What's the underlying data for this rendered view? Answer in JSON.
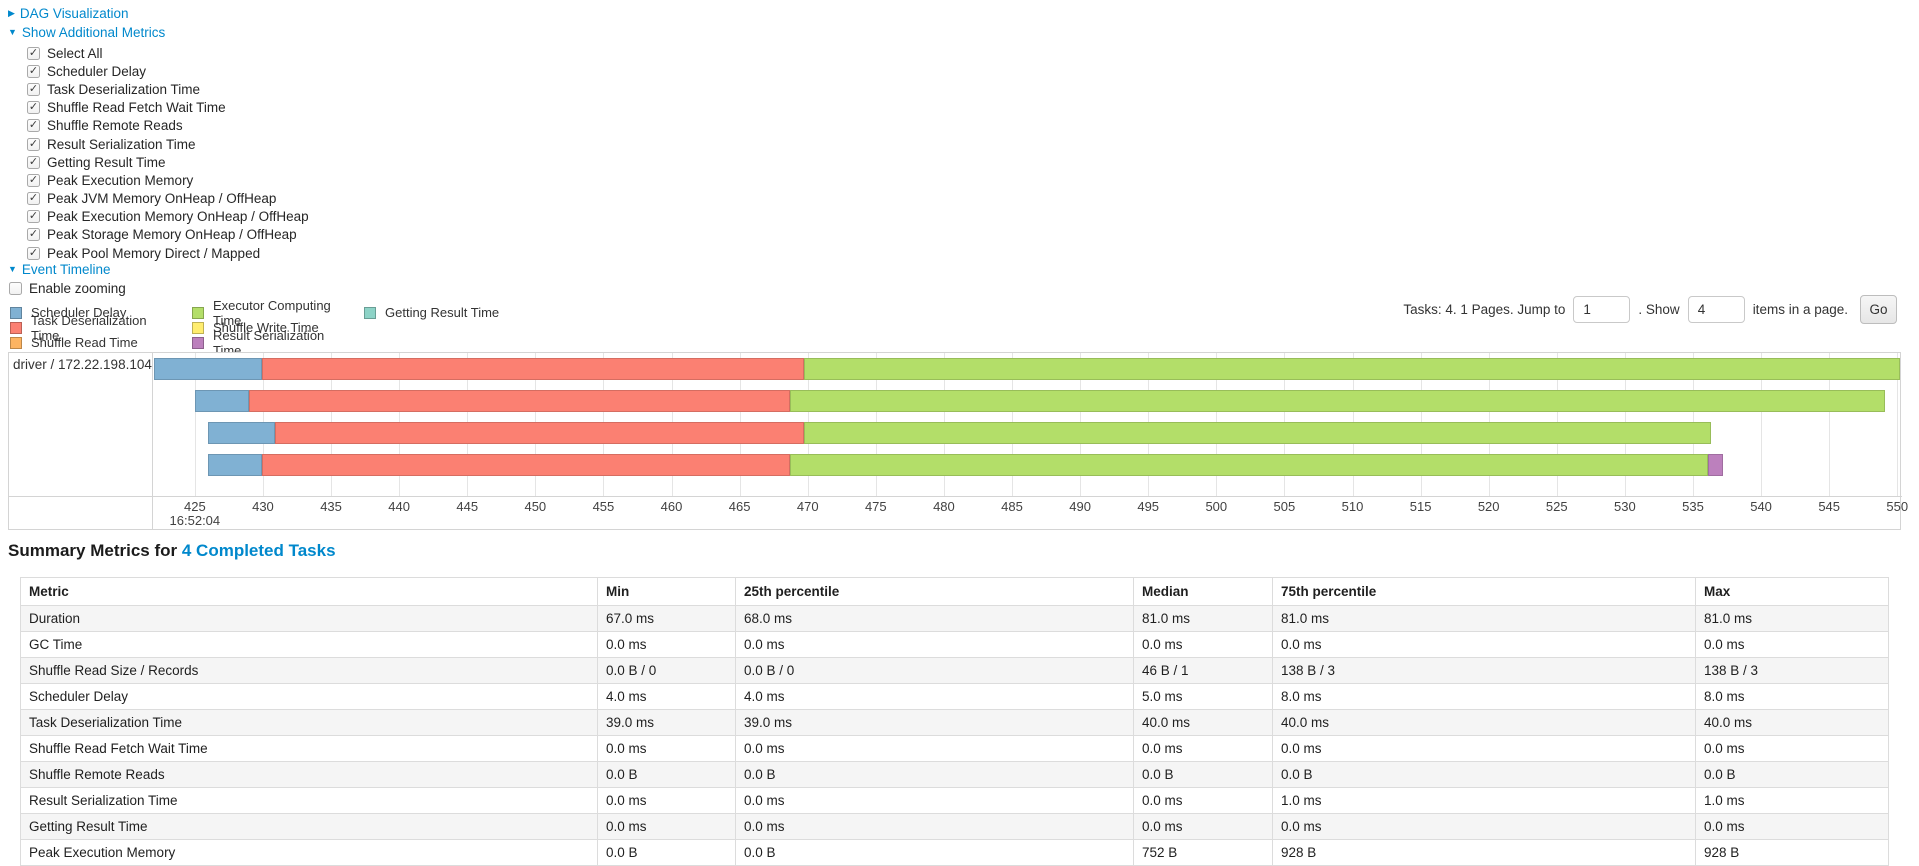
{
  "colors": {
    "link": "#0088cc",
    "scheduler_delay": "#80B1D3",
    "task_deserialization": "#FB8072",
    "shuffle_read": "#FDB462",
    "executor_computing": "#B3DE69",
    "shuffle_write": "#FFED6F",
    "result_serialization": "#BC80BD",
    "getting_result": "#8DD3C7"
  },
  "toggles": {
    "dag": "DAG Visualization",
    "additional_metrics": "Show Additional Metrics",
    "event_timeline": "Event Timeline"
  },
  "metric_checkboxes": [
    {
      "label": "Select All",
      "checked": true
    },
    {
      "label": "Scheduler Delay",
      "checked": true
    },
    {
      "label": "Task Deserialization Time",
      "checked": true
    },
    {
      "label": "Shuffle Read Fetch Wait Time",
      "checked": true
    },
    {
      "label": "Shuffle Remote Reads",
      "checked": true
    },
    {
      "label": "Result Serialization Time",
      "checked": true
    },
    {
      "label": "Getting Result Time",
      "checked": true
    },
    {
      "label": "Peak Execution Memory",
      "checked": true
    },
    {
      "label": "Peak JVM Memory OnHeap / OffHeap",
      "checked": true
    },
    {
      "label": "Peak Execution Memory OnHeap / OffHeap",
      "checked": true
    },
    {
      "label": "Peak Storage Memory OnHeap / OffHeap",
      "checked": true
    },
    {
      "label": "Peak Pool Memory Direct / Mapped",
      "checked": true
    }
  ],
  "enable_zooming": {
    "label": "Enable zooming",
    "checked": false
  },
  "legend_columns": [
    [
      {
        "label": "Scheduler Delay",
        "color_key": "scheduler_delay"
      },
      {
        "label": "Task Deserialization Time",
        "color_key": "task_deserialization"
      },
      {
        "label": "Shuffle Read Time",
        "color_key": "shuffle_read"
      }
    ],
    [
      {
        "label": "Executor Computing Time",
        "color_key": "executor_computing"
      },
      {
        "label": "Shuffle Write Time",
        "color_key": "shuffle_write"
      },
      {
        "label": "Result Serialization Time",
        "color_key": "result_serialization"
      }
    ],
    [
      {
        "label": "Getting Result Time",
        "color_key": "getting_result"
      }
    ]
  ],
  "pagination": {
    "tasks_text": "Tasks: 4. 1 Pages. Jump to",
    "jump_value": "1",
    "show_text": ". Show",
    "show_value": "4",
    "items_text": "items in a page.",
    "go_label": "Go"
  },
  "chart_data": {
    "type": "timeline",
    "group_label": "driver / 172.22.198.104",
    "axis": {
      "tick_start": 425,
      "tick_end": 550,
      "tick_step": 5,
      "domain_min": 422,
      "domain_max": 550.2,
      "time_label": "16:52:04"
    },
    "tasks": [
      {
        "segments": [
          {
            "name": "scheduler_delay",
            "start": 422.0,
            "end": 429.9
          },
          {
            "name": "task_deserialization",
            "start": 429.9,
            "end": 469.7
          },
          {
            "name": "executor_computing",
            "start": 469.7,
            "end": 550.2
          }
        ]
      },
      {
        "segments": [
          {
            "name": "scheduler_delay",
            "start": 425.0,
            "end": 429.0
          },
          {
            "name": "task_deserialization",
            "start": 429.0,
            "end": 468.7
          },
          {
            "name": "executor_computing",
            "start": 468.7,
            "end": 549.1
          }
        ]
      },
      {
        "segments": [
          {
            "name": "scheduler_delay",
            "start": 426.0,
            "end": 430.9
          },
          {
            "name": "task_deserialization",
            "start": 430.9,
            "end": 469.7
          },
          {
            "name": "executor_computing",
            "start": 469.7,
            "end": 536.3
          }
        ]
      },
      {
        "segments": [
          {
            "name": "scheduler_delay",
            "start": 426.0,
            "end": 429.9
          },
          {
            "name": "task_deserialization",
            "start": 429.9,
            "end": 468.7
          },
          {
            "name": "executor_computing",
            "start": 468.7,
            "end": 536.1
          },
          {
            "name": "result_serialization",
            "start": 536.1,
            "end": 537.2
          }
        ]
      }
    ]
  },
  "summary": {
    "title_prefix": "Summary Metrics for",
    "title_link": "4 Completed Tasks",
    "headers": [
      "Metric",
      "Min",
      "25th percentile",
      "Median",
      "75th percentile",
      "Max"
    ],
    "rows": [
      {
        "metric": "Duration",
        "values": [
          "67.0 ms",
          "68.0 ms",
          "81.0 ms",
          "81.0 ms",
          "81.0 ms"
        ]
      },
      {
        "metric": "GC Time",
        "values": [
          "0.0 ms",
          "0.0 ms",
          "0.0 ms",
          "0.0 ms",
          "0.0 ms"
        ]
      },
      {
        "metric": "Shuffle Read Size / Records",
        "values": [
          "0.0 B / 0",
          "0.0 B / 0",
          "46 B / 1",
          "138 B / 3",
          "138 B / 3"
        ]
      },
      {
        "metric": "Scheduler Delay",
        "values": [
          "4.0 ms",
          "4.0 ms",
          "5.0 ms",
          "8.0 ms",
          "8.0 ms"
        ]
      },
      {
        "metric": "Task Deserialization Time",
        "values": [
          "39.0 ms",
          "39.0 ms",
          "40.0 ms",
          "40.0 ms",
          "40.0 ms"
        ]
      },
      {
        "metric": "Shuffle Read Fetch Wait Time",
        "values": [
          "0.0 ms",
          "0.0 ms",
          "0.0 ms",
          "0.0 ms",
          "0.0 ms"
        ]
      },
      {
        "metric": "Shuffle Remote Reads",
        "values": [
          "0.0 B",
          "0.0 B",
          "0.0 B",
          "0.0 B",
          "0.0 B"
        ]
      },
      {
        "metric": "Result Serialization Time",
        "values": [
          "0.0 ms",
          "0.0 ms",
          "0.0 ms",
          "1.0 ms",
          "1.0 ms"
        ]
      },
      {
        "metric": "Getting Result Time",
        "values": [
          "0.0 ms",
          "0.0 ms",
          "0.0 ms",
          "0.0 ms",
          "0.0 ms"
        ]
      },
      {
        "metric": "Peak Execution Memory",
        "values": [
          "0.0 B",
          "0.0 B",
          "752 B",
          "928 B",
          "928 B"
        ]
      }
    ]
  }
}
